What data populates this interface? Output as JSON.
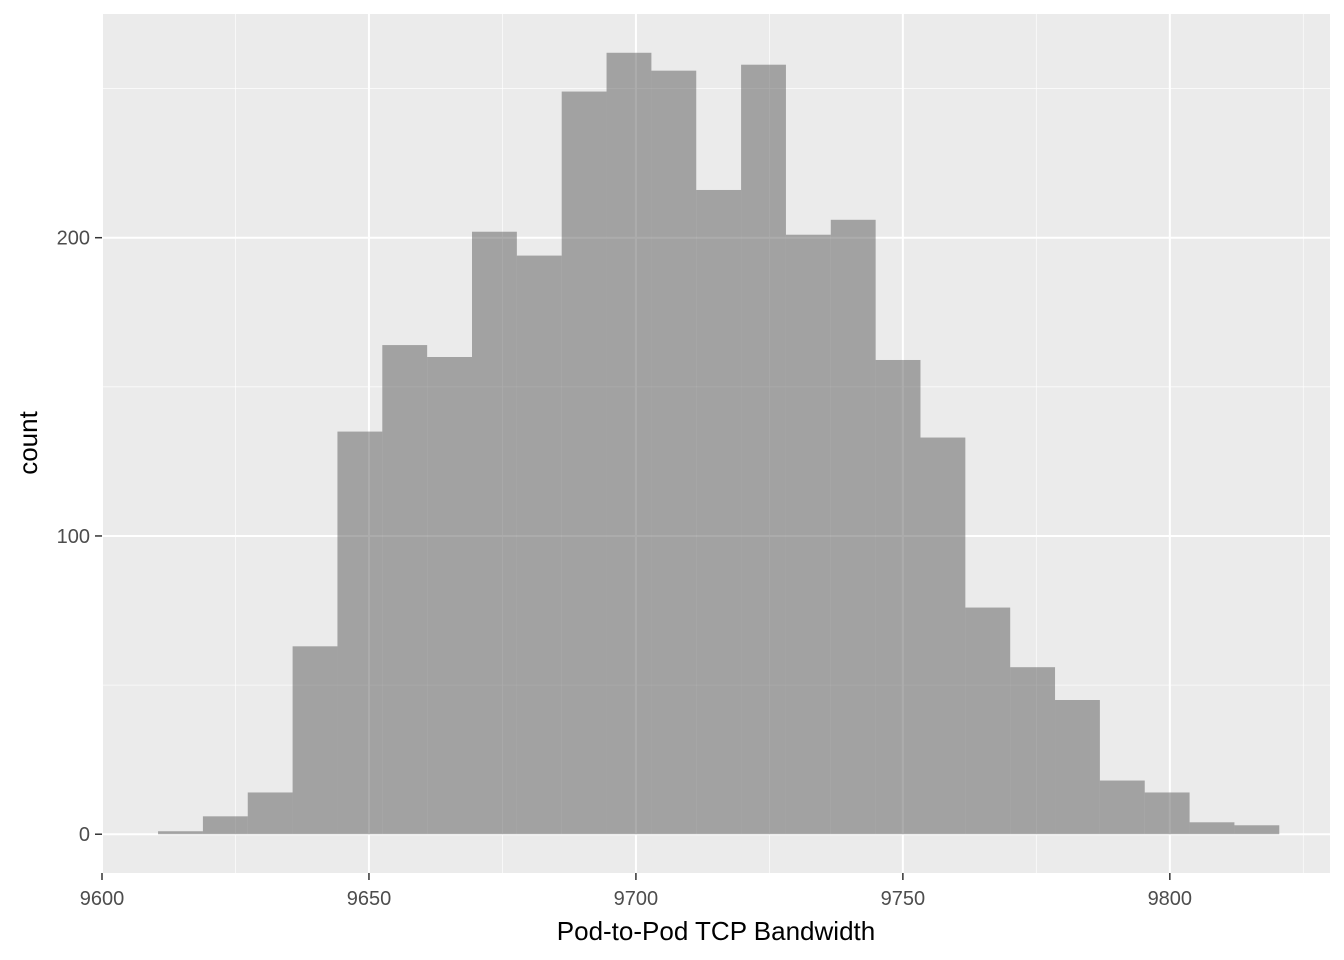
{
  "chart_data": {
    "type": "histogram",
    "title": "",
    "xlabel": "Pod-to-Pod TCP Bandwidth",
    "ylabel": "count",
    "xlim": [
      9600,
      9830
    ],
    "ylim": [
      -13,
      275
    ],
    "x_ticks": [
      "9600",
      "9650",
      "9700",
      "9750",
      "9800"
    ],
    "x_tick_values": [
      9600,
      9650,
      9700,
      9750,
      9800
    ],
    "y_ticks": [
      "0",
      "100",
      "200"
    ],
    "y_tick_values": [
      0,
      100,
      200
    ],
    "grid": true,
    "bin_width": 8.4,
    "bins": [
      {
        "x0": 9610.5,
        "x1": 9618.9,
        "count": 1
      },
      {
        "x0": 9618.9,
        "x1": 9627.3,
        "count": 6
      },
      {
        "x0": 9627.3,
        "x1": 9635.7,
        "count": 14
      },
      {
        "x0": 9635.7,
        "x1": 9644.1,
        "count": 63
      },
      {
        "x0": 9644.1,
        "x1": 9652.5,
        "count": 135
      },
      {
        "x0": 9652.5,
        "x1": 9660.9,
        "count": 164
      },
      {
        "x0": 9660.9,
        "x1": 9669.3,
        "count": 160
      },
      {
        "x0": 9669.3,
        "x1": 9677.7,
        "count": 202
      },
      {
        "x0": 9677.7,
        "x1": 9686.1,
        "count": 194
      },
      {
        "x0": 9686.1,
        "x1": 9694.5,
        "count": 249
      },
      {
        "x0": 9694.5,
        "x1": 9702.9,
        "count": 262
      },
      {
        "x0": 9702.9,
        "x1": 9711.3,
        "count": 256
      },
      {
        "x0": 9711.3,
        "x1": 9719.7,
        "count": 216
      },
      {
        "x0": 9719.7,
        "x1": 9728.1,
        "count": 258
      },
      {
        "x0": 9728.1,
        "x1": 9736.5,
        "count": 201
      },
      {
        "x0": 9736.5,
        "x1": 9744.9,
        "count": 206
      },
      {
        "x0": 9744.9,
        "x1": 9753.3,
        "count": 159
      },
      {
        "x0": 9753.3,
        "x1": 9761.7,
        "count": 133
      },
      {
        "x0": 9761.7,
        "x1": 9770.1,
        "count": 76
      },
      {
        "x0": 9770.1,
        "x1": 9778.5,
        "count": 56
      },
      {
        "x0": 9778.5,
        "x1": 9786.9,
        "count": 45
      },
      {
        "x0": 9786.9,
        "x1": 9795.3,
        "count": 18
      },
      {
        "x0": 9795.3,
        "x1": 9803.7,
        "count": 14
      },
      {
        "x0": 9803.7,
        "x1": 9812.1,
        "count": 4
      },
      {
        "x0": 9812.1,
        "x1": 9820.5,
        "count": 3
      }
    ],
    "colors": {
      "panel_background": "#ebebeb",
      "grid_major": "#ffffff",
      "bar_fill": "#595959",
      "bar_opacity": 0.5,
      "tick_color": "#333333"
    }
  }
}
